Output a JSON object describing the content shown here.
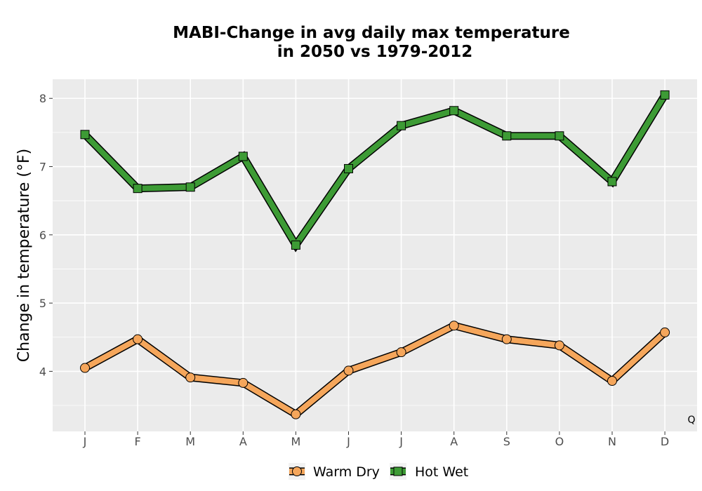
{
  "chart_data": {
    "type": "line",
    "title_lines": [
      "MABI-Change in avg daily max temperature",
      "in 2050 vs 1979-2012"
    ],
    "xlabel": "",
    "ylabel": "Change in temperature (°F)",
    "categories": [
      "J",
      "F",
      "M",
      "A",
      "M",
      "J",
      "J",
      "A",
      "S",
      "O",
      "N",
      "D"
    ],
    "ylim": [
      3.12,
      8.28
    ],
    "yticks": [
      4,
      5,
      6,
      7,
      8
    ],
    "grid": true,
    "legend_position": "bottom",
    "corner_label": "Q",
    "series": [
      {
        "name": "Warm Dry",
        "marker": "circle",
        "color": "#f5a65b",
        "values": [
          4.05,
          4.47,
          3.91,
          3.83,
          3.37,
          4.01,
          4.28,
          4.67,
          4.47,
          4.38,
          3.86,
          4.57
        ]
      },
      {
        "name": "Hot Wet",
        "marker": "square",
        "color": "#3d9b35",
        "values": [
          7.47,
          6.68,
          6.7,
          7.15,
          5.85,
          6.97,
          7.6,
          7.82,
          7.45,
          7.45,
          6.78,
          8.05
        ]
      }
    ]
  },
  "colors": {
    "panel_background": "#ebebeb",
    "grid_line": "#ffffff",
    "outline": "#000000"
  }
}
